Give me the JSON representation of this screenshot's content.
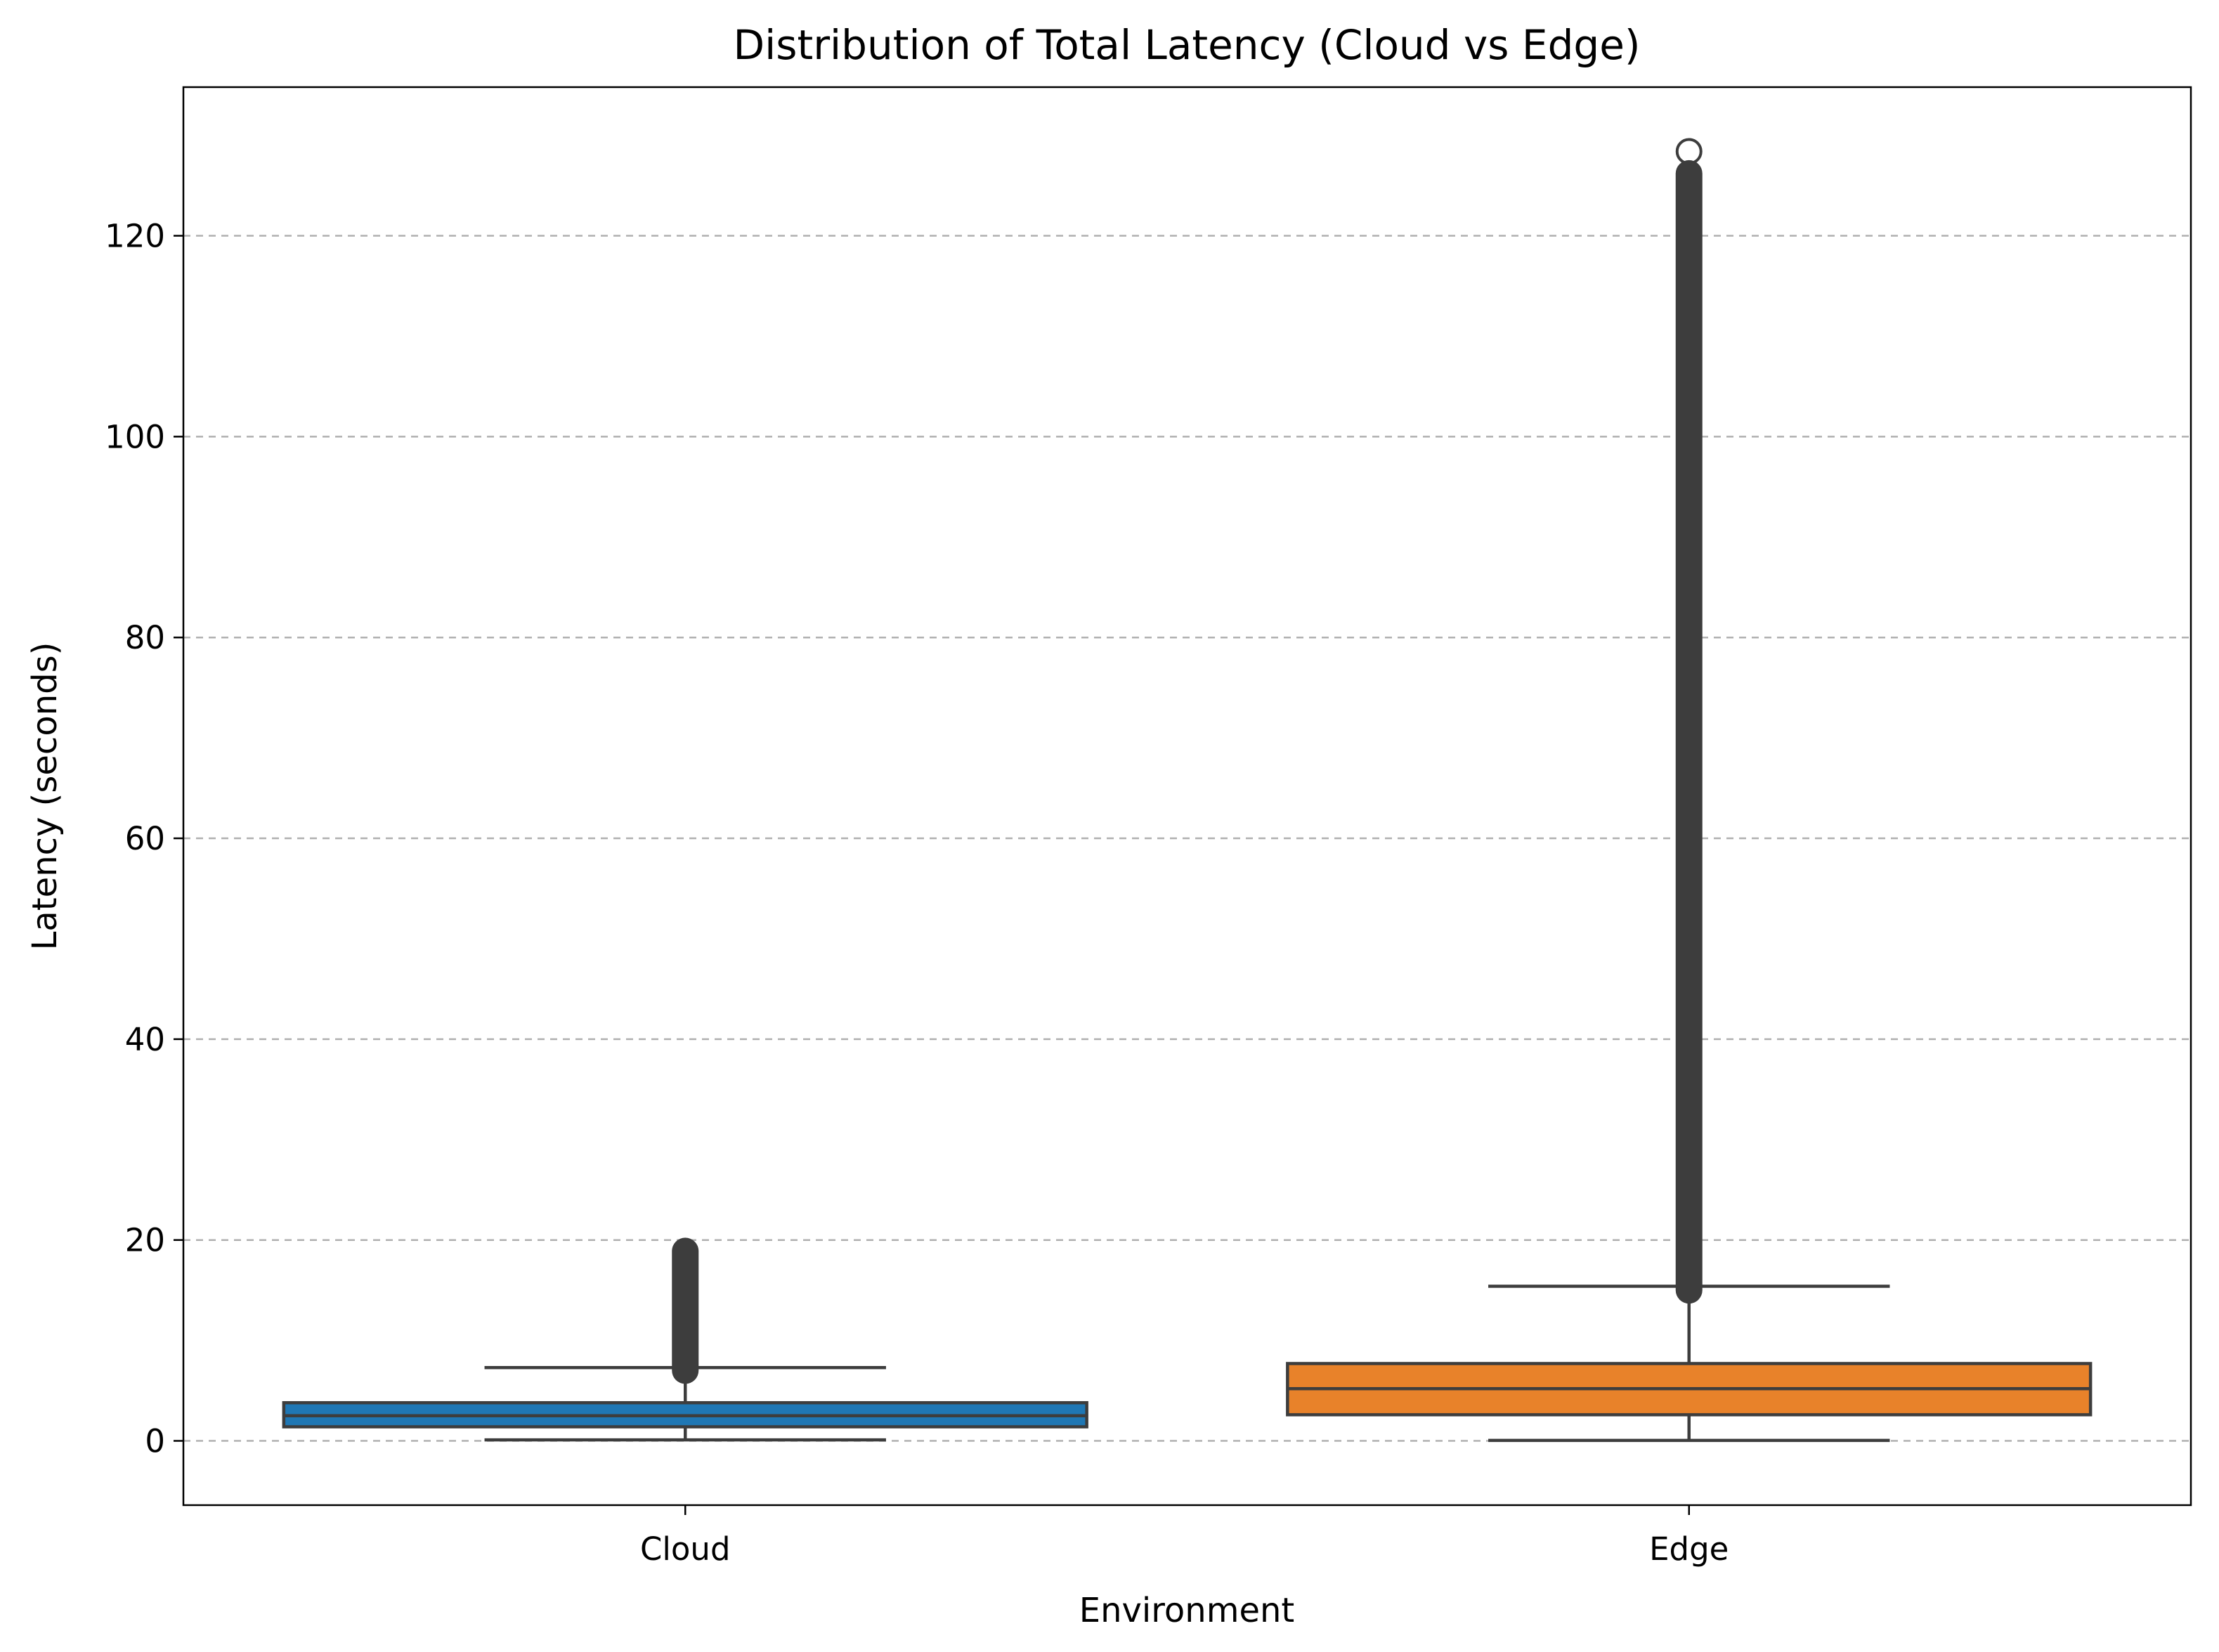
{
  "chart_data": {
    "type": "box",
    "title": "Distribution of Total Latency (Cloud vs Edge)",
    "xlabel": "Environment",
    "ylabel": "Latency (seconds)",
    "categories": [
      "Cloud",
      "Edge"
    ],
    "ylim": [
      -6.4,
      134.8
    ],
    "yticks": [
      0,
      20,
      40,
      60,
      80,
      100,
      120
    ],
    "grid": {
      "axis": "y",
      "style": "dashed"
    },
    "colors": {
      "Cloud": "#1f77b4",
      "Edge": "#e8822a",
      "lines": "#3d3d3d"
    },
    "series": [
      {
        "category": "Cloud",
        "whisker_low": 0.1,
        "q1": 1.4,
        "median": 2.5,
        "q3": 3.8,
        "whisker_high": 7.3,
        "flier_band": [
          7.0,
          18.9
        ],
        "flier_points": []
      },
      {
        "category": "Edge",
        "whisker_low": 0.05,
        "q1": 2.6,
        "median": 5.2,
        "q3": 7.7,
        "whisker_high": 15.4,
        "flier_band": [
          15.0,
          126.2
        ],
        "flier_points": [
          128.4
        ]
      }
    ]
  }
}
